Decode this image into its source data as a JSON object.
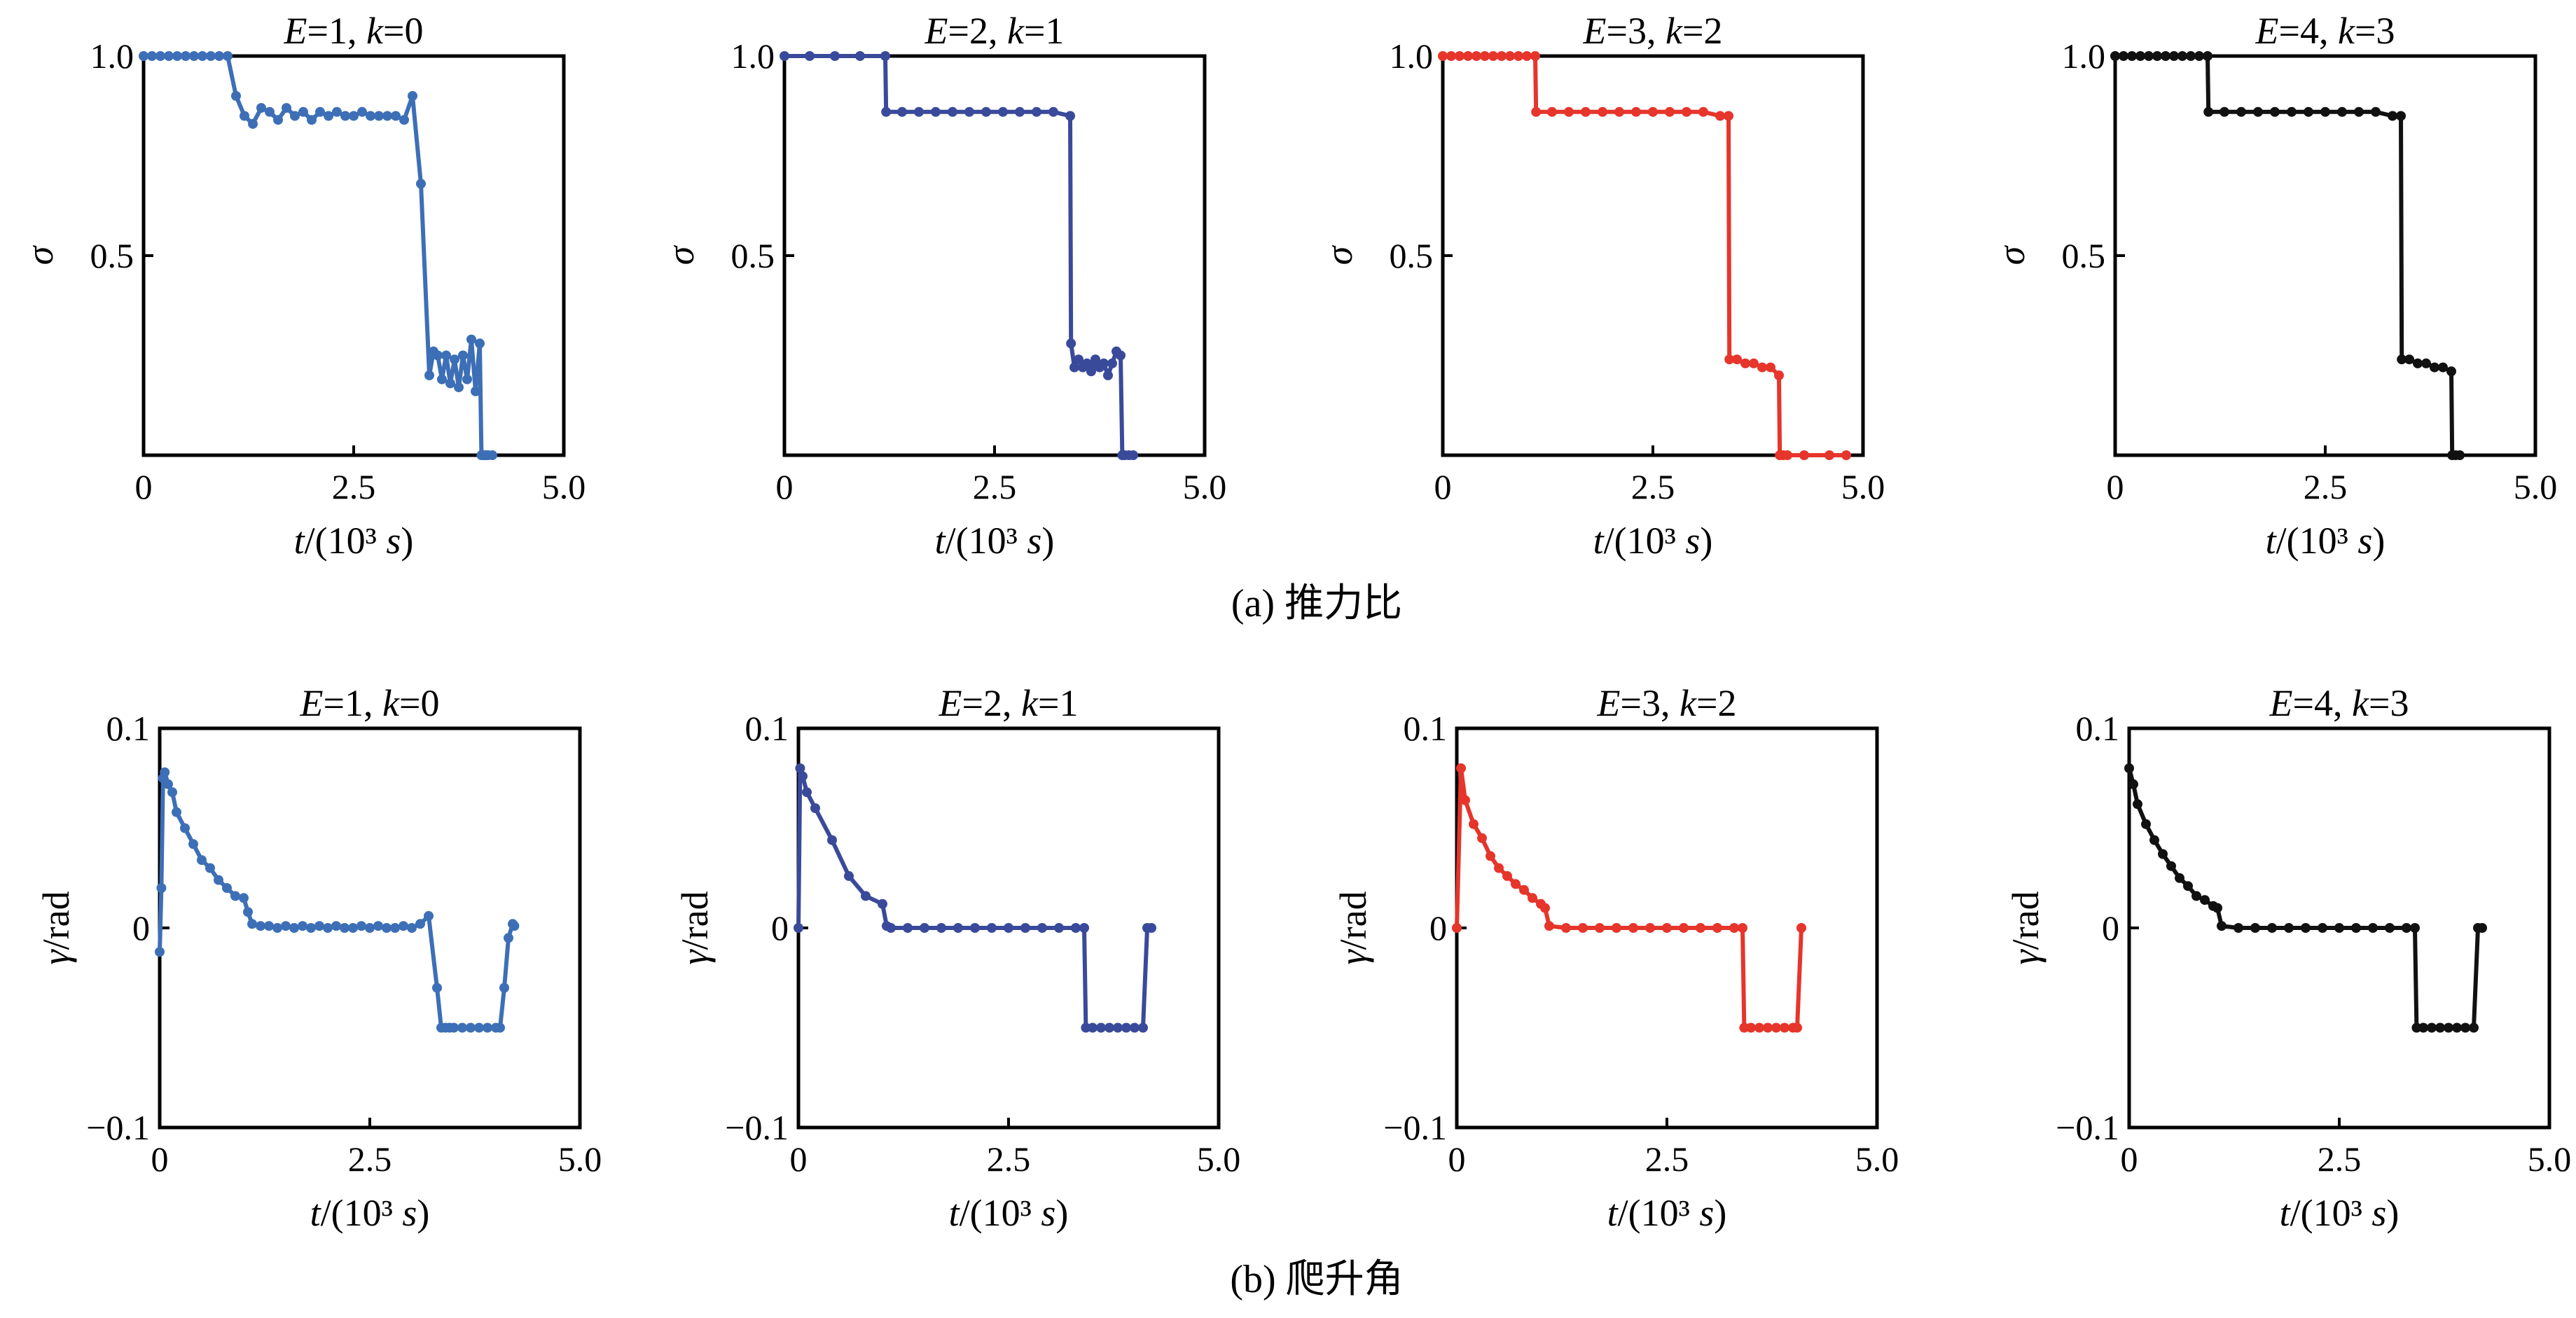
{
  "figure": {
    "row_captions": [
      "(a) 推力比",
      "(b) 爬升角"
    ]
  },
  "chart_data": [
    {
      "type": "line",
      "row": "a",
      "title": "E=1, k=0",
      "color": "#3d6fb6",
      "xlabel": "t/(10³ s)",
      "ylabel": "σ",
      "xlim": [
        0,
        5
      ],
      "ylim": [
        0,
        1
      ],
      "xticks": [
        "0",
        "2.5",
        "5.0"
      ],
      "yticks": [
        "0.5",
        "1.0"
      ],
      "x": [
        0.0,
        0.1,
        0.2,
        0.3,
        0.4,
        0.5,
        0.6,
        0.7,
        0.8,
        0.9,
        1.0,
        1.1,
        1.2,
        1.3,
        1.4,
        1.5,
        1.6,
        1.7,
        1.8,
        1.9,
        2.0,
        2.1,
        2.2,
        2.3,
        2.4,
        2.5,
        2.6,
        2.7,
        2.8,
        2.9,
        3.0,
        3.1,
        3.2,
        3.3,
        3.4,
        3.45,
        3.5,
        3.55,
        3.6,
        3.65,
        3.7,
        3.75,
        3.8,
        3.85,
        3.9,
        3.95,
        4.0,
        4.02,
        4.04,
        4.06,
        4.08,
        4.1,
        4.15
      ],
      "y": [
        1.0,
        1.0,
        1.0,
        1.0,
        1.0,
        1.0,
        1.0,
        1.0,
        1.0,
        1.0,
        1.0,
        0.9,
        0.85,
        0.83,
        0.87,
        0.86,
        0.84,
        0.87,
        0.85,
        0.86,
        0.84,
        0.86,
        0.85,
        0.86,
        0.85,
        0.85,
        0.86,
        0.85,
        0.85,
        0.85,
        0.85,
        0.84,
        0.9,
        0.68,
        0.2,
        0.26,
        0.25,
        0.19,
        0.25,
        0.18,
        0.24,
        0.17,
        0.25,
        0.19,
        0.29,
        0.16,
        0.28,
        0.0,
        0.0,
        0.0,
        0.0,
        0.0,
        0.0
      ]
    },
    {
      "type": "line",
      "row": "a",
      "title": "E=2, k=1",
      "color": "#3a4a9a",
      "xlabel": "t/(10³ s)",
      "ylabel": "σ",
      "xlim": [
        0,
        5
      ],
      "ylim": [
        0,
        1
      ],
      "xticks": [
        "0",
        "2.5",
        "5.0"
      ],
      "yticks": [
        "0.5",
        "1.0"
      ],
      "x": [
        0.0,
        0.3,
        0.6,
        0.9,
        1.2,
        1.21,
        1.4,
        1.6,
        1.8,
        2.0,
        2.2,
        2.4,
        2.6,
        2.8,
        3.0,
        3.2,
        3.4,
        3.41,
        3.45,
        3.5,
        3.55,
        3.6,
        3.65,
        3.7,
        3.75,
        3.8,
        3.85,
        3.9,
        3.95,
        4.0,
        4.02,
        4.05,
        4.1,
        4.15
      ],
      "y": [
        1.0,
        1.0,
        1.0,
        1.0,
        1.0,
        0.86,
        0.86,
        0.86,
        0.86,
        0.86,
        0.86,
        0.86,
        0.86,
        0.86,
        0.86,
        0.86,
        0.85,
        0.28,
        0.22,
        0.24,
        0.22,
        0.23,
        0.21,
        0.24,
        0.22,
        0.23,
        0.2,
        0.23,
        0.26,
        0.25,
        0.0,
        0.0,
        0.0,
        0.0
      ]
    },
    {
      "type": "line",
      "row": "a",
      "title": "E=3, k=2",
      "color": "#e6352b",
      "xlabel": "t/(10³ s)",
      "ylabel": "σ",
      "xlim": [
        0,
        5
      ],
      "ylim": [
        0,
        1
      ],
      "xticks": [
        "0",
        "2.5",
        "5.0"
      ],
      "yticks": [
        "0.5",
        "1.0"
      ],
      "x": [
        0.0,
        0.1,
        0.2,
        0.3,
        0.4,
        0.5,
        0.6,
        0.7,
        0.8,
        0.9,
        1.0,
        1.1,
        1.11,
        1.3,
        1.5,
        1.7,
        1.9,
        2.1,
        2.3,
        2.5,
        2.7,
        2.9,
        3.1,
        3.3,
        3.4,
        3.41,
        3.5,
        3.6,
        3.7,
        3.8,
        3.9,
        4.0,
        4.01,
        4.05,
        4.1,
        4.3,
        4.6,
        4.8
      ],
      "y": [
        1.0,
        1.0,
        1.0,
        1.0,
        1.0,
        1.0,
        1.0,
        1.0,
        1.0,
        1.0,
        1.0,
        1.0,
        0.86,
        0.86,
        0.86,
        0.86,
        0.86,
        0.86,
        0.86,
        0.86,
        0.86,
        0.86,
        0.86,
        0.85,
        0.85,
        0.24,
        0.24,
        0.23,
        0.23,
        0.22,
        0.22,
        0.2,
        0.0,
        0.0,
        0.0,
        0.0,
        0.0,
        0.0
      ]
    },
    {
      "type": "line",
      "row": "a",
      "title": "E=4, k=3",
      "color": "#111111",
      "xlabel": "t/(10³ s)",
      "ylabel": "σ",
      "xlim": [
        0,
        5
      ],
      "ylim": [
        0,
        1
      ],
      "xticks": [
        "0",
        "2.5",
        "5.0"
      ],
      "yticks": [
        "0.5",
        "1.0"
      ],
      "x": [
        0.0,
        0.1,
        0.2,
        0.3,
        0.4,
        0.5,
        0.6,
        0.7,
        0.8,
        0.9,
        1.0,
        1.1,
        1.11,
        1.3,
        1.5,
        1.7,
        1.9,
        2.1,
        2.3,
        2.5,
        2.7,
        2.9,
        3.1,
        3.3,
        3.4,
        3.41,
        3.5,
        3.6,
        3.7,
        3.8,
        3.9,
        4.0,
        4.01,
        4.05,
        4.1
      ],
      "y": [
        1.0,
        1.0,
        1.0,
        1.0,
        1.0,
        1.0,
        1.0,
        1.0,
        1.0,
        1.0,
        1.0,
        1.0,
        0.86,
        0.86,
        0.86,
        0.86,
        0.86,
        0.86,
        0.86,
        0.86,
        0.86,
        0.86,
        0.86,
        0.85,
        0.85,
        0.24,
        0.24,
        0.23,
        0.23,
        0.22,
        0.22,
        0.21,
        0.0,
        0.0,
        0.0
      ]
    },
    {
      "type": "line",
      "row": "b",
      "title": "E=1, k=0",
      "color": "#3d6fb6",
      "xlabel": "t/(10³ s)",
      "ylabel": "γ/rad",
      "xlim": [
        0,
        5
      ],
      "ylim": [
        -0.1,
        0.1
      ],
      "xticks": [
        "0",
        "2.5",
        "5.0"
      ],
      "yticks": [
        "−0.1",
        "0",
        "0.1"
      ],
      "x": [
        0.0,
        0.02,
        0.04,
        0.06,
        0.1,
        0.15,
        0.2,
        0.3,
        0.4,
        0.5,
        0.6,
        0.7,
        0.8,
        0.9,
        1.0,
        1.05,
        1.1,
        1.2,
        1.3,
        1.4,
        1.5,
        1.6,
        1.7,
        1.8,
        1.9,
        2.0,
        2.1,
        2.2,
        2.3,
        2.4,
        2.5,
        2.6,
        2.7,
        2.8,
        2.9,
        3.0,
        3.1,
        3.2,
        3.3,
        3.35,
        3.4,
        3.45,
        3.5,
        3.6,
        3.7,
        3.8,
        3.9,
        4.0,
        4.05,
        4.1,
        4.15,
        4.2,
        4.22
      ],
      "y": [
        -0.012,
        0.02,
        0.075,
        0.078,
        0.072,
        0.068,
        0.058,
        0.05,
        0.042,
        0.034,
        0.03,
        0.024,
        0.02,
        0.016,
        0.015,
        0.008,
        0.002,
        0.001,
        0.001,
        0.0,
        0.001,
        0.0,
        0.001,
        0.0,
        0.001,
        0.0,
        0.001,
        0.0,
        0.0,
        0.001,
        0.0,
        0.001,
        0.0,
        0.0,
        0.001,
        0.0,
        0.002,
        0.006,
        -0.03,
        -0.05,
        -0.05,
        -0.05,
        -0.05,
        -0.05,
        -0.05,
        -0.05,
        -0.05,
        -0.05,
        -0.05,
        -0.03,
        -0.005,
        0.002,
        0.001
      ]
    },
    {
      "type": "line",
      "row": "b",
      "title": "E=2, k=1",
      "color": "#3a4a9a",
      "xlabel": "t/(10³ s)",
      "ylabel": "γ/rad",
      "xlim": [
        0,
        5
      ],
      "ylim": [
        -0.1,
        0.1
      ],
      "xticks": [
        "0",
        "2.5",
        "5.0"
      ],
      "yticks": [
        "−0.1",
        "0",
        "0.1"
      ],
      "x": [
        0.0,
        0.02,
        0.05,
        0.1,
        0.2,
        0.4,
        0.6,
        0.8,
        1.0,
        1.05,
        1.1,
        1.3,
        1.5,
        1.7,
        1.9,
        2.1,
        2.3,
        2.5,
        2.7,
        2.9,
        3.1,
        3.3,
        3.4,
        3.42,
        3.5,
        3.6,
        3.7,
        3.8,
        3.9,
        4.0,
        4.1,
        4.15,
        4.2
      ],
      "y": [
        0.0,
        0.08,
        0.076,
        0.068,
        0.06,
        0.044,
        0.026,
        0.016,
        0.012,
        0.001,
        0.0,
        0.0,
        0.0,
        0.0,
        0.0,
        0.0,
        0.0,
        0.0,
        0.0,
        0.0,
        0.0,
        0.0,
        0.0,
        -0.05,
        -0.05,
        -0.05,
        -0.05,
        -0.05,
        -0.05,
        -0.05,
        -0.05,
        0.0,
        0.0
      ]
    },
    {
      "type": "line",
      "row": "b",
      "title": "E=3, k=2",
      "color": "#e6352b",
      "xlabel": "t/(10³ s)",
      "ylabel": "γ/rad",
      "xlim": [
        0,
        5
      ],
      "ylim": [
        -0.1,
        0.1
      ],
      "xticks": [
        "0",
        "2.5",
        "5.0"
      ],
      "yticks": [
        "−0.1",
        "0",
        "0.1"
      ],
      "x": [
        0.0,
        0.05,
        0.1,
        0.2,
        0.3,
        0.4,
        0.5,
        0.6,
        0.7,
        0.8,
        0.9,
        1.0,
        1.05,
        1.1,
        1.3,
        1.5,
        1.7,
        1.9,
        2.1,
        2.3,
        2.5,
        2.7,
        2.9,
        3.1,
        3.3,
        3.4,
        3.42,
        3.5,
        3.6,
        3.7,
        3.8,
        3.9,
        4.0,
        4.05,
        4.1
      ],
      "y": [
        0.0,
        0.08,
        0.064,
        0.052,
        0.045,
        0.036,
        0.03,
        0.026,
        0.022,
        0.019,
        0.015,
        0.012,
        0.01,
        0.001,
        0.0,
        0.0,
        0.0,
        0.0,
        0.0,
        0.0,
        0.0,
        0.0,
        0.0,
        0.0,
        0.0,
        0.0,
        -0.05,
        -0.05,
        -0.05,
        -0.05,
        -0.05,
        -0.05,
        -0.05,
        -0.05,
        0.0
      ]
    },
    {
      "type": "line",
      "row": "b",
      "title": "E=4, k=3",
      "color": "#111111",
      "xlabel": "t/(10³ s)",
      "ylabel": "γ/rad",
      "xlim": [
        0,
        5
      ],
      "ylim": [
        -0.1,
        0.1
      ],
      "xticks": [
        "0",
        "2.5",
        "5.0"
      ],
      "yticks": [
        "−0.1",
        "0",
        "0.1"
      ],
      "x": [
        0.0,
        0.05,
        0.1,
        0.2,
        0.3,
        0.4,
        0.5,
        0.6,
        0.7,
        0.8,
        0.9,
        1.0,
        1.05,
        1.1,
        1.3,
        1.5,
        1.7,
        1.9,
        2.1,
        2.3,
        2.5,
        2.7,
        2.9,
        3.1,
        3.3,
        3.4,
        3.42,
        3.5,
        3.6,
        3.7,
        3.8,
        3.9,
        4.0,
        4.1,
        4.15,
        4.2
      ],
      "y": [
        0.08,
        0.072,
        0.062,
        0.052,
        0.044,
        0.037,
        0.031,
        0.025,
        0.021,
        0.016,
        0.014,
        0.011,
        0.01,
        0.001,
        0.0,
        0.0,
        0.0,
        0.0,
        0.0,
        0.0,
        0.0,
        0.0,
        0.0,
        0.0,
        0.0,
        0.0,
        -0.05,
        -0.05,
        -0.05,
        -0.05,
        -0.05,
        -0.05,
        -0.05,
        -0.05,
        0.0,
        0.0
      ]
    }
  ]
}
